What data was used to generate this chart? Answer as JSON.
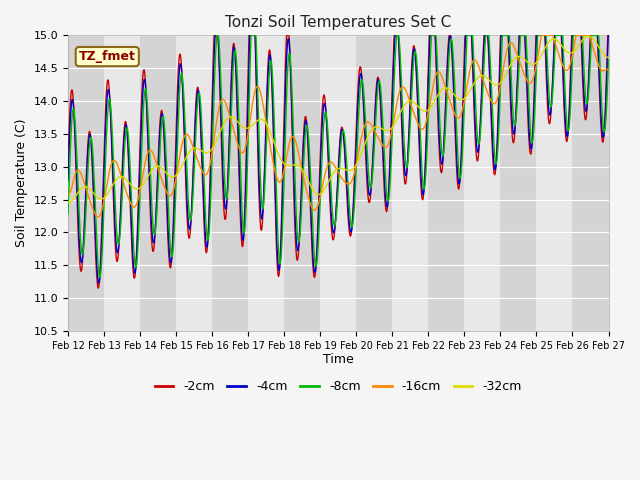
{
  "title": "Tonzi Soil Temperatures Set C",
  "xlabel": "Time",
  "ylabel": "Soil Temperature (C)",
  "ylim": [
    10.5,
    15.0
  ],
  "annotation": "TZ_fmet",
  "series_colors": {
    "-2cm": "#cc0000",
    "-4cm": "#0000cc",
    "-8cm": "#00bb00",
    "-16cm": "#ff8800",
    "-32cm": "#dddd00"
  },
  "series_names": [
    "-2cm",
    "-4cm",
    "-8cm",
    "-16cm",
    "-32cm"
  ],
  "fig_bg_color": "#f5f5f5",
  "plot_bg_color": "#e8e8e8",
  "stripe_color": "#d4d4d4",
  "grid_color": "#ffffff",
  "n_days": 16,
  "start_day": 12,
  "yticks": [
    10.5,
    11.0,
    11.5,
    12.0,
    12.5,
    13.0,
    13.5,
    14.0,
    14.5,
    15.0
  ]
}
